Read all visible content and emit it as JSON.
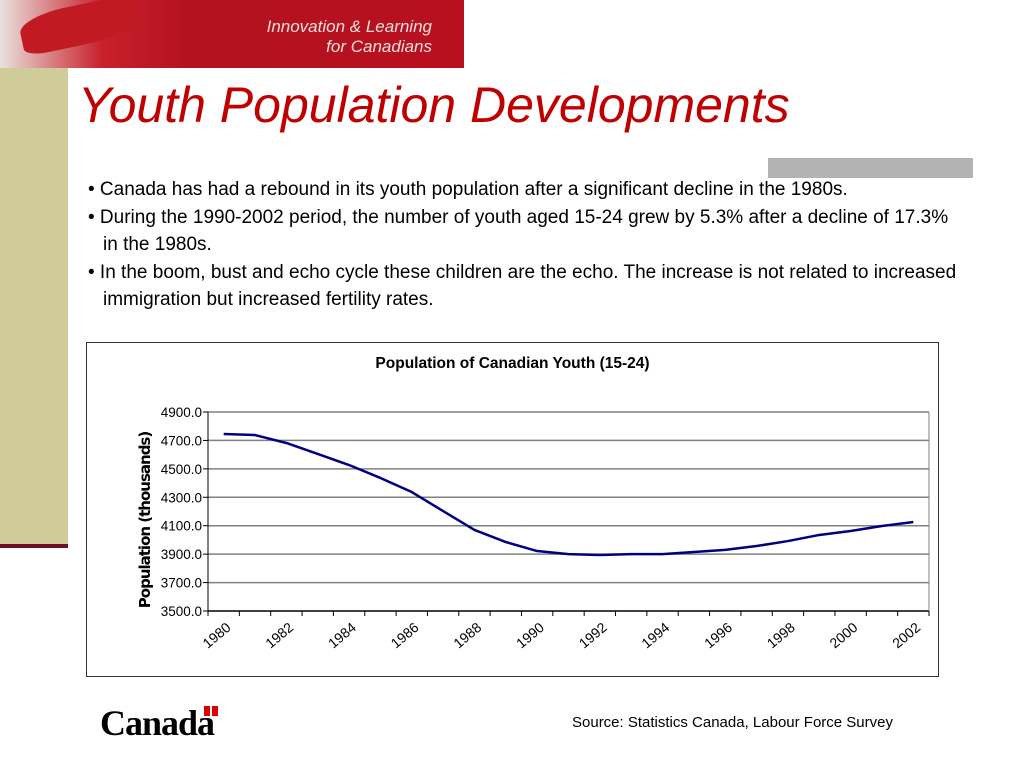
{
  "banner": {
    "text_line1": "Innovation & Learning",
    "text_line2": "for Canadians"
  },
  "slide_title": "Youth Population Developments",
  "bullets": [
    "• Canada has had a rebound in its youth population after a significant decline in the 1980s.",
    "• During the 1990-2002 period, the number of youth aged 15-24 grew by 5.3% after a decline of 17.3% in the 1980s.",
    "• In the boom, bust and echo cycle these children are the echo.  The increase is not related to increased immigration but increased fertility rates."
  ],
  "chart_data": {
    "type": "line",
    "title": "Population of Canadian Youth (15-24)",
    "xlabel": "",
    "ylabel": "Population (thousands)",
    "x": [
      1980,
      1981,
      1982,
      1983,
      1984,
      1985,
      1986,
      1987,
      1988,
      1989,
      1990,
      1991,
      1992,
      1993,
      1994,
      1995,
      1996,
      1997,
      1998,
      1999,
      2000,
      2001,
      2002
    ],
    "x_tick_labels": [
      "1980",
      "1982",
      "1984",
      "1986",
      "1988",
      "1990",
      "1992",
      "1994",
      "1996",
      "1998",
      "2000",
      "2002"
    ],
    "values": [
      4745,
      4738,
      4682,
      4605,
      4527,
      4436,
      4337,
      4203,
      4070,
      3985,
      3922,
      3900,
      3894,
      3900,
      3900,
      3915,
      3930,
      3957,
      3992,
      4035,
      4063,
      4098,
      4126
    ],
    "ylim": [
      3500,
      4900
    ],
    "y_tick_labels": [
      "3500.0",
      "3700.0",
      "3900.0",
      "4100.0",
      "4300.0",
      "4500.0",
      "4700.0",
      "4900.0"
    ],
    "grid": true,
    "line_color": "#000080"
  },
  "footer": {
    "logo": "Canada",
    "source": "Source: Statistics Canada, Labour Force Survey"
  }
}
